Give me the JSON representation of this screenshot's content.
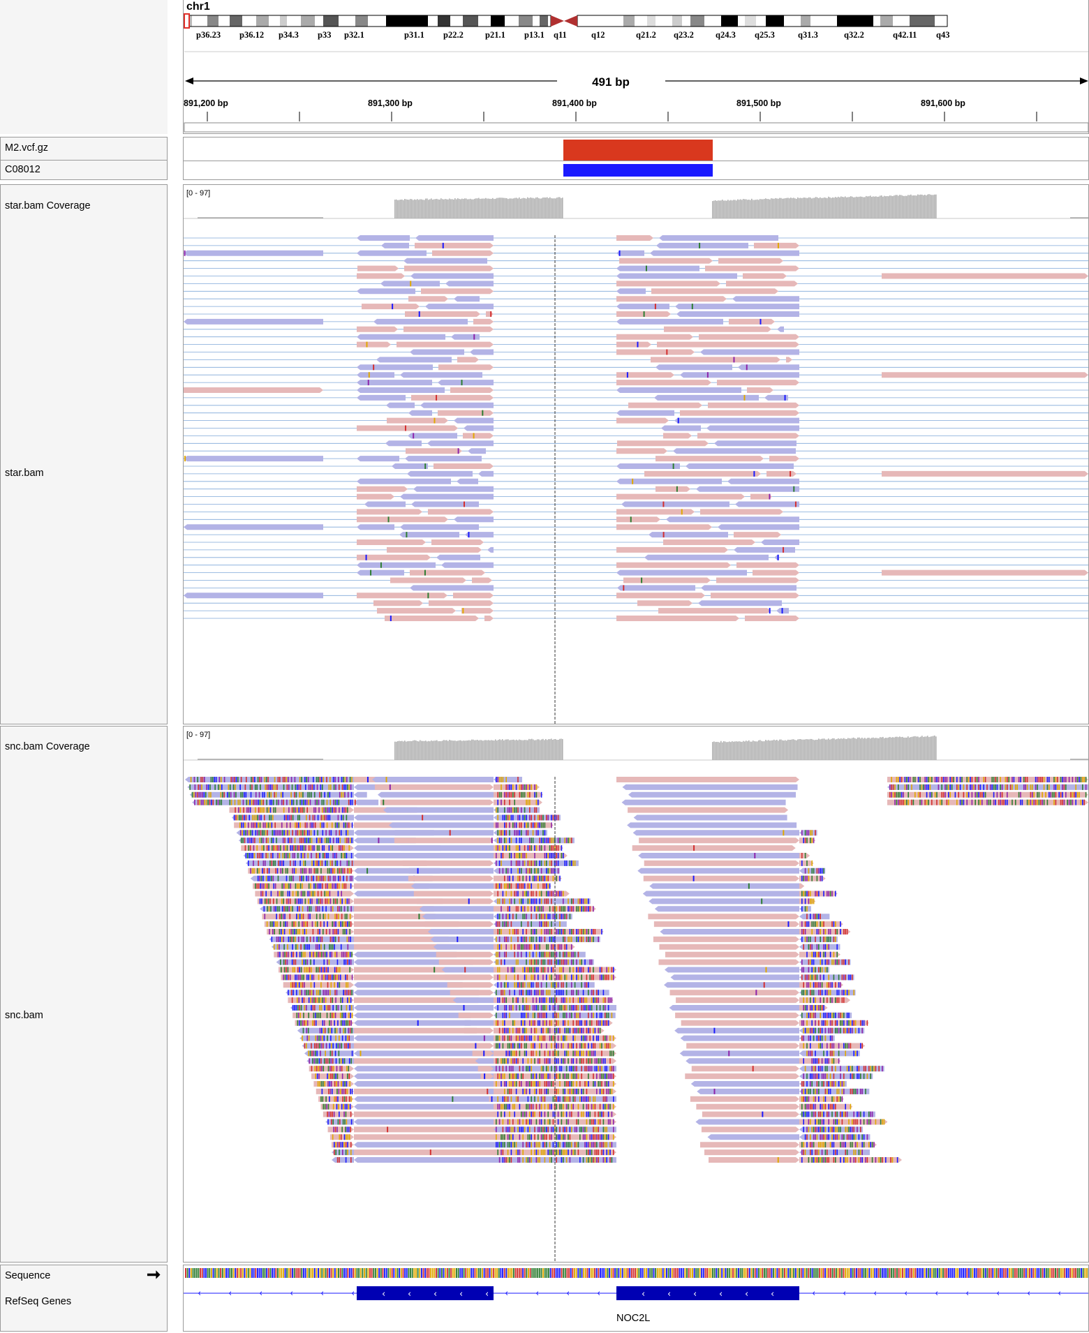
{
  "ideogram": {
    "chromosome": "chr1",
    "bands": [
      "p36.23",
      "p36.12",
      "p34.3",
      "p33",
      "p32.1",
      "p31.1",
      "p22.2",
      "p21.1",
      "p13.1",
      "q11",
      "q12",
      "q21.2",
      "q23.2",
      "q24.3",
      "q25.3",
      "q31.3",
      "q32.2",
      "q42.11",
      "q43"
    ]
  },
  "ruler": {
    "span_label": "491 bp",
    "ticks": [
      "891,200 bp",
      "891,300 bp",
      "891,400 bp",
      "891,500 bp",
      "891,600 bp"
    ]
  },
  "tracks": {
    "vcf_name": "M2.vcf.gz",
    "sample_name": "C08012",
    "star_coverage_name": "star.bam Coverage",
    "star_coverage_range": "[0 - 97]",
    "star_bam_name": "star.bam",
    "snc_coverage_name": "snc.bam Coverage",
    "snc_coverage_range": "[0 - 97]",
    "snc_bam_name": "snc.bam",
    "sequence_name": "Sequence",
    "refseq_name": "RefSeq Genes",
    "gene_name": "NOC2L"
  },
  "colors": {
    "variant_site": "#d9381e",
    "genotype": "#1a1aff",
    "read_forward": "#e6b8b8",
    "read_reverse": "#b3b3e6",
    "coverage": "#b0b0b0",
    "exon": "#0000b3",
    "intron_line": "#7fa7d8"
  }
}
